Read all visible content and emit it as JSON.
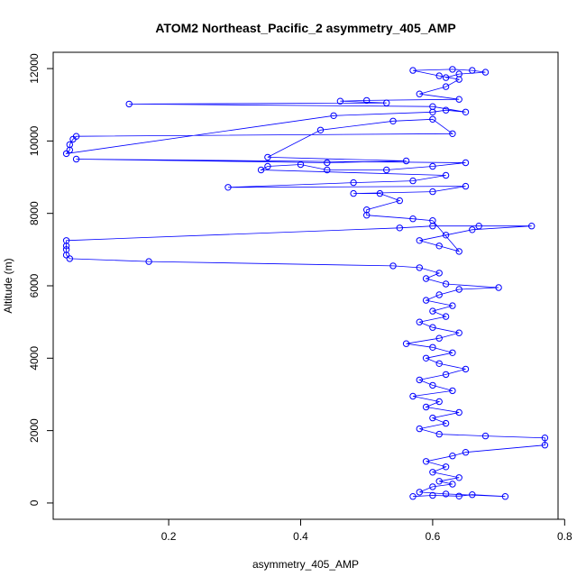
{
  "chart_data": {
    "type": "scatter",
    "title": "ATOM2 Northeast_Pacific_2 asymmetry_405_AMP",
    "xlabel": "asymmetry_405_AMP",
    "ylabel": "Altitude (m)",
    "xlim": [
      0.025,
      0.79
    ],
    "ylim": [
      -450,
      12450
    ],
    "xticks": [
      0.2,
      0.4,
      0.6,
      0.8
    ],
    "xtick_labels": [
      "0.2",
      "0.4",
      "0.6",
      "0.8"
    ],
    "yticks": [
      0,
      2000,
      4000,
      6000,
      8000,
      10000,
      12000
    ],
    "ytick_labels": [
      "0",
      "2000",
      "4000",
      "6000",
      "8000",
      "10000",
      "12000"
    ],
    "grid": false,
    "legend": "none",
    "marker": "open-circle",
    "connected": true,
    "series": [
      {
        "color": "#0000ff",
        "points": [
          [
            0.57,
            180
          ],
          [
            0.6,
            210
          ],
          [
            0.64,
            190
          ],
          [
            0.66,
            230
          ],
          [
            0.71,
            180
          ],
          [
            0.62,
            250
          ],
          [
            0.58,
            300
          ],
          [
            0.6,
            450
          ],
          [
            0.63,
            520
          ],
          [
            0.61,
            600
          ],
          [
            0.64,
            700
          ],
          [
            0.6,
            850
          ],
          [
            0.62,
            1000
          ],
          [
            0.59,
            1150
          ],
          [
            0.63,
            1300
          ],
          [
            0.65,
            1400
          ],
          [
            0.77,
            1600
          ],
          [
            0.77,
            1800
          ],
          [
            0.68,
            1850
          ],
          [
            0.61,
            1900
          ],
          [
            0.58,
            2050
          ],
          [
            0.62,
            2200
          ],
          [
            0.6,
            2350
          ],
          [
            0.64,
            2500
          ],
          [
            0.59,
            2650
          ],
          [
            0.61,
            2800
          ],
          [
            0.57,
            2950
          ],
          [
            0.63,
            3100
          ],
          [
            0.6,
            3250
          ],
          [
            0.58,
            3400
          ],
          [
            0.62,
            3550
          ],
          [
            0.65,
            3700
          ],
          [
            0.61,
            3850
          ],
          [
            0.59,
            4000
          ],
          [
            0.63,
            4150
          ],
          [
            0.6,
            4300
          ],
          [
            0.56,
            4400
          ],
          [
            0.61,
            4550
          ],
          [
            0.64,
            4700
          ],
          [
            0.6,
            4850
          ],
          [
            0.58,
            5000
          ],
          [
            0.62,
            5150
          ],
          [
            0.6,
            5300
          ],
          [
            0.63,
            5450
          ],
          [
            0.59,
            5600
          ],
          [
            0.61,
            5750
          ],
          [
            0.64,
            5900
          ],
          [
            0.7,
            5950
          ],
          [
            0.62,
            6050
          ],
          [
            0.59,
            6200
          ],
          [
            0.61,
            6350
          ],
          [
            0.58,
            6500
          ],
          [
            0.54,
            6550
          ],
          [
            0.17,
            6670
          ],
          [
            0.05,
            6750
          ],
          [
            0.045,
            6850
          ],
          [
            0.045,
            7000
          ],
          [
            0.045,
            7100
          ],
          [
            0.045,
            7250
          ],
          [
            0.55,
            7600
          ],
          [
            0.6,
            7650
          ],
          [
            0.67,
            7650
          ],
          [
            0.75,
            7650
          ],
          [
            0.66,
            7550
          ],
          [
            0.62,
            7400
          ],
          [
            0.58,
            7250
          ],
          [
            0.61,
            7100
          ],
          [
            0.64,
            6950
          ],
          [
            0.6,
            7800
          ],
          [
            0.57,
            7850
          ],
          [
            0.5,
            7950
          ],
          [
            0.5,
            8100
          ],
          [
            0.55,
            8350
          ],
          [
            0.52,
            8550
          ],
          [
            0.48,
            8550
          ],
          [
            0.6,
            8600
          ],
          [
            0.65,
            8750
          ],
          [
            0.29,
            8720
          ],
          [
            0.48,
            8850
          ],
          [
            0.57,
            8900
          ],
          [
            0.62,
            9050
          ],
          [
            0.34,
            9200
          ],
          [
            0.35,
            9300
          ],
          [
            0.4,
            9350
          ],
          [
            0.44,
            9200
          ],
          [
            0.53,
            9200
          ],
          [
            0.6,
            9300
          ],
          [
            0.65,
            9400
          ],
          [
            0.06,
            9500
          ],
          [
            0.44,
            9400
          ],
          [
            0.56,
            9450
          ],
          [
            0.35,
            9550
          ],
          [
            0.43,
            10300
          ],
          [
            0.54,
            10550
          ],
          [
            0.6,
            10600
          ],
          [
            0.63,
            10200
          ],
          [
            0.06,
            10130
          ],
          [
            0.055,
            10050
          ],
          [
            0.05,
            9900
          ],
          [
            0.05,
            9750
          ],
          [
            0.045,
            9650
          ],
          [
            0.45,
            10700
          ],
          [
            0.6,
            10800
          ],
          [
            0.62,
            10850
          ],
          [
            0.65,
            10800
          ],
          [
            0.6,
            10950
          ],
          [
            0.14,
            11020
          ],
          [
            0.53,
            11050
          ],
          [
            0.46,
            11100
          ],
          [
            0.5,
            11120
          ],
          [
            0.64,
            11150
          ],
          [
            0.58,
            11300
          ],
          [
            0.62,
            11500
          ],
          [
            0.64,
            11700
          ],
          [
            0.61,
            11800
          ],
          [
            0.57,
            11950
          ],
          [
            0.63,
            11980
          ],
          [
            0.66,
            11950
          ],
          [
            0.68,
            11900
          ],
          [
            0.64,
            11850
          ],
          [
            0.62,
            11750
          ]
        ]
      }
    ]
  }
}
